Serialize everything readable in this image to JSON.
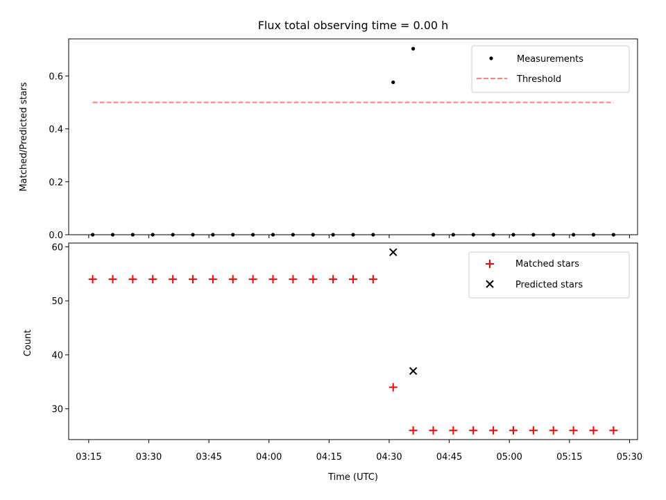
{
  "chart_data": {
    "title": "Flux total observing time = 0.00 h",
    "xlabel": "Time (UTC)",
    "x_tick_labels": [
      "03:15",
      "03:30",
      "03:45",
      "04:00",
      "04:15",
      "04:30",
      "04:45",
      "05:00",
      "05:15",
      "05:30"
    ],
    "x_tick_minutes": [
      195,
      210,
      225,
      240,
      255,
      270,
      285,
      300,
      315,
      330
    ],
    "xlim_minutes": [
      190,
      332
    ],
    "panels": [
      {
        "type": "scatter",
        "ylabel": "Matched/Predicted stars",
        "ylim": [
          0,
          0.74
        ],
        "yticks": [
          0.0,
          0.2,
          0.4,
          0.6
        ],
        "ytick_labels": [
          "0.0",
          "0.2",
          "0.4",
          "0.6"
        ],
        "legend_position": "top-right",
        "series": [
          {
            "name": "Measurements",
            "marker": "dot",
            "color": "#000000",
            "x_minutes": [
              196,
              201,
              206,
              211,
              216,
              221,
              226,
              231,
              236,
              241,
              246,
              251,
              256,
              261,
              266,
              271,
              276,
              281,
              286,
              291,
              296,
              301,
              306,
              311,
              316,
              321,
              326
            ],
            "values": [
              0,
              0,
              0,
              0,
              0,
              0,
              0,
              0,
              0,
              0,
              0,
              0,
              0,
              0,
              0,
              0.576,
              0.703,
              0,
              0,
              0,
              0,
              0,
              0,
              0,
              0,
              0,
              0
            ]
          },
          {
            "name": "Threshold",
            "marker": "dashed-line",
            "color": "#ff7f7f",
            "x_minutes": [
              196,
              326
            ],
            "values": [
              0.5,
              0.5
            ]
          }
        ]
      },
      {
        "type": "scatter",
        "ylabel": "Count",
        "ylim": [
          24.3,
          60.7
        ],
        "yticks": [
          30,
          40,
          50,
          60
        ],
        "ytick_labels": [
          "30",
          "40",
          "50",
          "60"
        ],
        "legend_position": "top-right",
        "series": [
          {
            "name": "Matched stars",
            "marker": "plus",
            "color": "#ff0000",
            "x_minutes": [
              196,
              201,
              206,
              211,
              216,
              221,
              226,
              231,
              236,
              241,
              246,
              251,
              256,
              261,
              266,
              271,
              276,
              281,
              286,
              291,
              296,
              301,
              306,
              311,
              316,
              321,
              326
            ],
            "values": [
              54,
              54,
              54,
              54,
              54,
              54,
              54,
              54,
              54,
              54,
              54,
              54,
              54,
              54,
              54,
              34,
              26,
              26,
              26,
              26,
              26,
              26,
              26,
              26,
              26,
              26,
              26
            ]
          },
          {
            "name": "Predicted stars",
            "marker": "x",
            "color": "#000000",
            "x_minutes": [
              271,
              276
            ],
            "values": [
              59,
              37
            ]
          }
        ]
      }
    ]
  }
}
